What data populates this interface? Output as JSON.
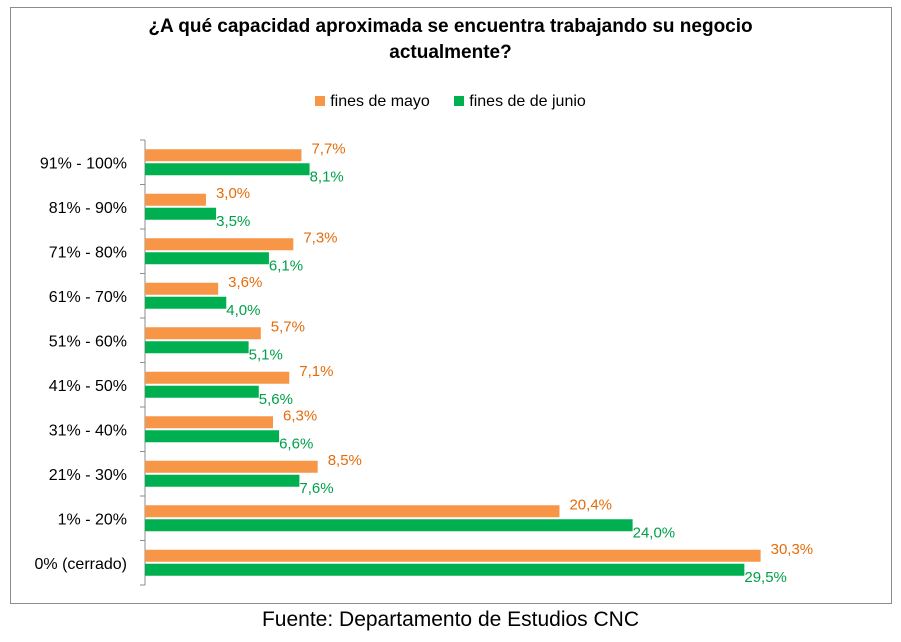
{
  "chart_data": {
    "type": "bar",
    "orientation": "horizontal",
    "title": "¿A qué capacidad aproximada se encuentra trabajando su negocio actualmente?",
    "title_lines": [
      "¿A qué capacidad aproximada se encuentra trabajando su negocio",
      "actualmente?"
    ],
    "categories": [
      "91% - 100%",
      "81% - 90%",
      "71% - 80%",
      "61% - 70%",
      "51% - 60%",
      "41% - 50%",
      "31% - 40%",
      "21% - 30%",
      "1% - 20%",
      "0% (cerrado)"
    ],
    "series": [
      {
        "name": "fines de mayo",
        "color": "#F79646",
        "values": [
          7.7,
          3.0,
          7.3,
          3.6,
          5.7,
          7.1,
          6.3,
          8.5,
          20.4,
          30.3
        ],
        "labels": [
          "7,7%",
          "3,0%",
          "7,3%",
          "3,6%",
          "5,7%",
          "7,1%",
          "6,3%",
          "8,5%",
          "20,4%",
          "30,3%"
        ]
      },
      {
        "name": "fines de de junio",
        "color": "#00B050",
        "values": [
          8.1,
          3.5,
          6.1,
          4.0,
          5.1,
          5.6,
          6.6,
          7.6,
          24.0,
          29.5
        ],
        "labels": [
          "8,1%",
          "3,5%",
          "6,1%",
          "4,0%",
          "5,1%",
          "5,6%",
          "6,6%",
          "7,6%",
          "24,0%",
          "29,5%"
        ]
      }
    ],
    "xlim": [
      0,
      31.5
    ],
    "grid": false,
    "legend_position": "top-center"
  },
  "source": "Fuente: Departamento de Estudios CNC"
}
